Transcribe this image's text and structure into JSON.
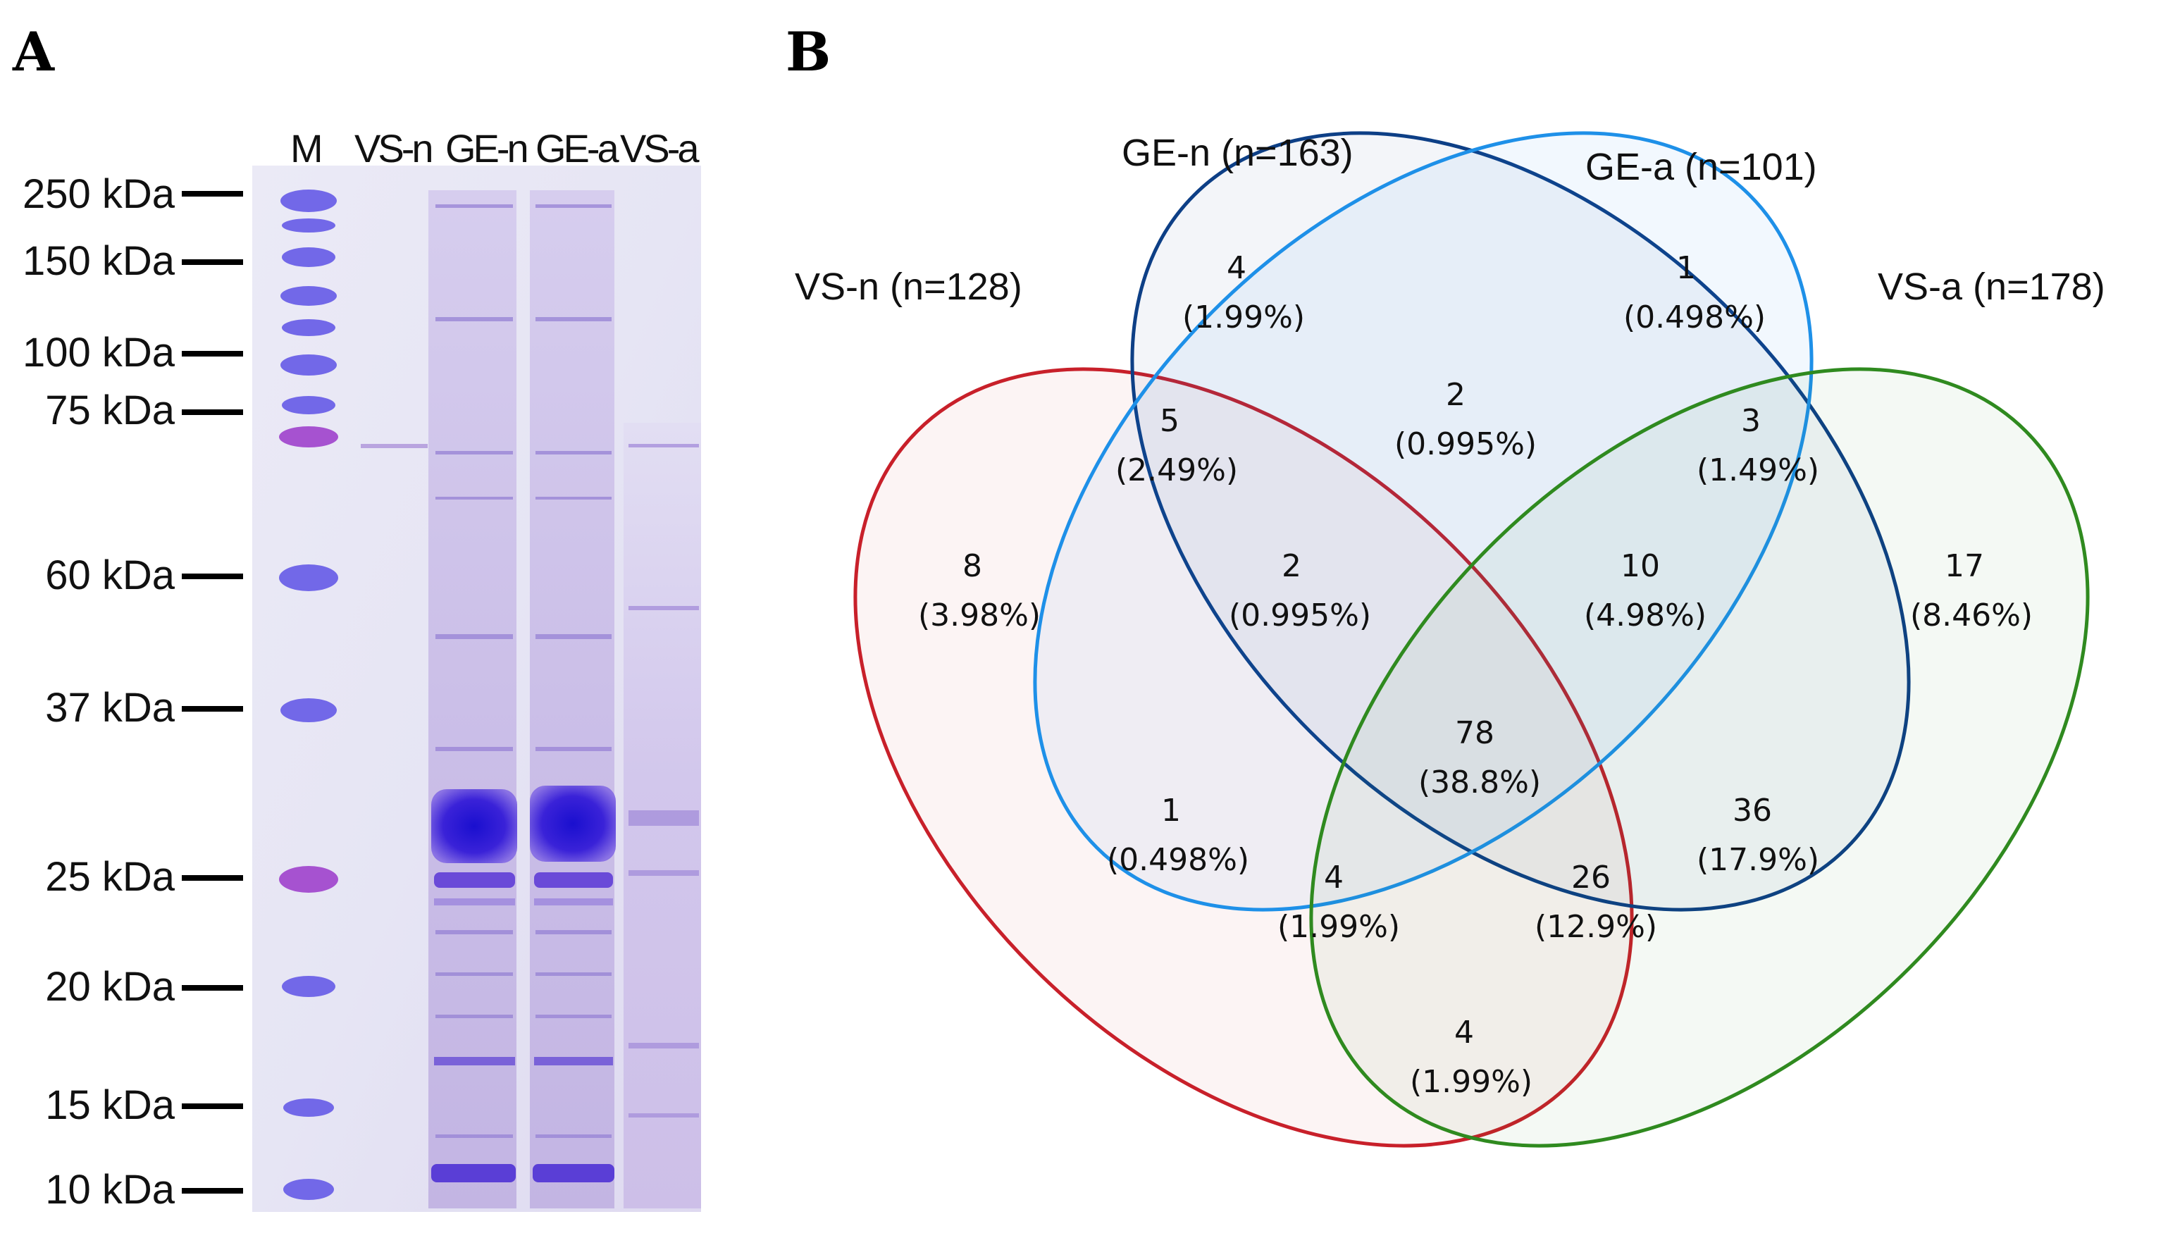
{
  "panelA": {
    "letter": "A",
    "lanes": [
      "M",
      "VS-n",
      "GE-n",
      "GE-a",
      "VS-a"
    ],
    "markers": [
      "250 kDa",
      "150 kDa",
      "100 kDa",
      "75 kDa",
      "60 kDa",
      "37 kDa",
      "25 kDa",
      "20 kDa",
      "15 kDa",
      "10 kDa"
    ]
  },
  "panelB": {
    "letter": "B",
    "sets": {
      "vs_n": "VS-n (n=128)",
      "ge_n": "GE-n (n=163)",
      "ge_a": "GE-a (n=101)",
      "vs_a": "VS-a (n=178)"
    },
    "regions": {
      "vs_n_only": {
        "count": "8",
        "pct": "(3.98%)"
      },
      "ge_n_only": {
        "count": "4",
        "pct": "(1.99%)"
      },
      "ge_a_only": {
        "count": "1",
        "pct": "(0.498%)"
      },
      "vs_a_only": {
        "count": "17",
        "pct": "(8.46%)"
      },
      "vsn_gen": {
        "count": "5",
        "pct": "(2.49%)"
      },
      "gen_gea": {
        "count": "2",
        "pct": "(0.995%)"
      },
      "gea_vsa": {
        "count": "3",
        "pct": "(1.49%)"
      },
      "vsn_gen_gea": {
        "count": "2",
        "pct": "(0.995%)"
      },
      "gen_gea_vsa": {
        "count": "10",
        "pct": "(4.98%)"
      },
      "all_four": {
        "count": "78",
        "pct": "(38.8%)"
      },
      "vsn_gea": {
        "count": "1",
        "pct": "(0.498%)"
      },
      "vsn_gea_vsa": {
        "count": "4",
        "pct": "(1.99%)"
      },
      "vsn_gen_vsa": {
        "count": "26",
        "pct": "(12.9%)"
      },
      "gen_vsa": {
        "count": "36",
        "pct": "(17.9%)"
      },
      "vsn_vsa": {
        "count": "4",
        "pct": "(1.99%)"
      }
    },
    "colors": {
      "vs_n": "#c8202a",
      "ge_n": "#0d3f86",
      "ge_a": "#1e90e8",
      "vs_a": "#2f8a1f"
    }
  }
}
